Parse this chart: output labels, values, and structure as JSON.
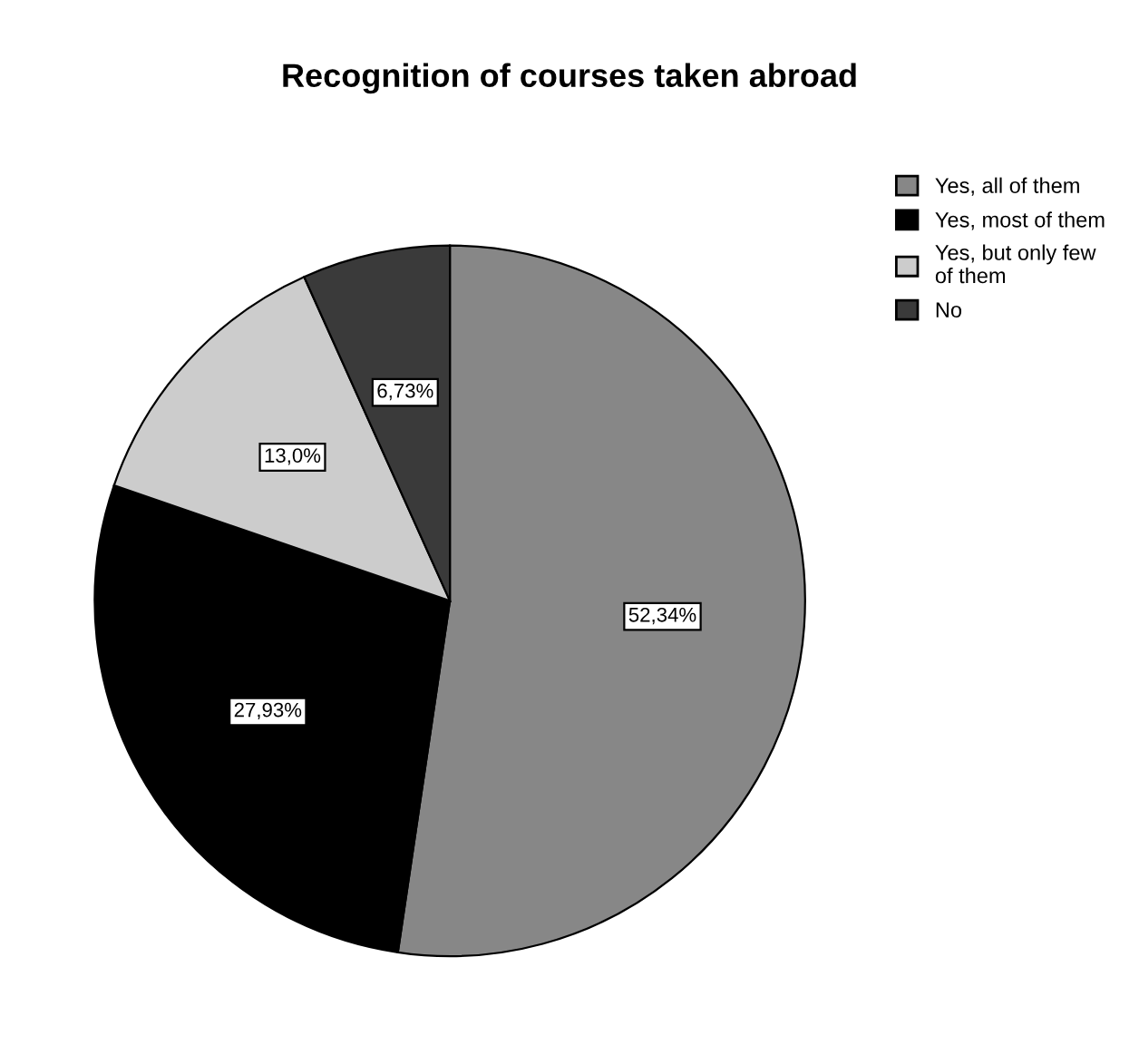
{
  "chart_data": {
    "type": "pie",
    "title": "Recognition of courses taken abroad",
    "categories": [
      "Yes, all of them",
      "Yes, most of them",
      "Yes, but only few\nof them",
      "No"
    ],
    "values": [
      52.34,
      27.93,
      13.0,
      6.73
    ],
    "value_labels": [
      "52,34%",
      "27,93%",
      "13,0%",
      "6,73%"
    ],
    "colors": [
      "#878787",
      "#000000",
      "#cccccc",
      "#3a3a3a"
    ],
    "legend": "top right"
  }
}
